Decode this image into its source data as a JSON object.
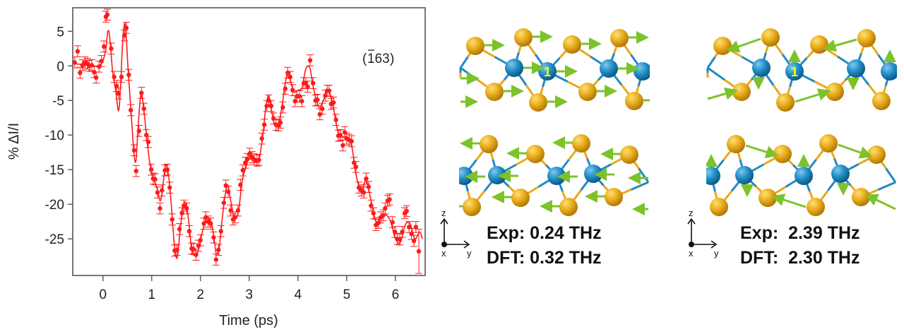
{
  "chart_data": {
    "type": "scatter",
    "title": "",
    "xlabel": "Time (ps)",
    "ylabel": "% ΔI/I",
    "xlim": [
      -0.62,
      6.61
    ],
    "ylim": [
      -30.3,
      8.4
    ],
    "xticks": [
      0,
      1,
      2,
      3,
      4,
      5,
      6
    ],
    "yticks": [
      5,
      0,
      -5,
      -10,
      -15,
      -20,
      -25
    ],
    "grid": false,
    "legend": null,
    "annotation": "(̅1̅ 63)",
    "annotation_main": "163",
    "series": [
      {
        "name": "data",
        "style": "markers+errorbars",
        "color": "#ff1a1a",
        "x": [
          -0.58,
          -0.52,
          -0.47,
          -0.42,
          -0.37,
          -0.32,
          -0.28,
          -0.23,
          -0.18,
          -0.14,
          -0.08,
          -0.03,
          0.02,
          0.06,
          0.09,
          0.17,
          0.23,
          0.28,
          0.32,
          0.38,
          0.44,
          0.48,
          0.53,
          0.57,
          0.64,
          0.68,
          0.74,
          0.79,
          0.84,
          0.89,
          0.93,
          0.99,
          1.03,
          1.07,
          1.12,
          1.17,
          1.21,
          1.27,
          1.32,
          1.37,
          1.42,
          1.47,
          1.52,
          1.57,
          1.62,
          1.66,
          1.72,
          1.77,
          1.82,
          1.86,
          1.91,
          1.96,
          2.0,
          2.07,
          2.11,
          2.16,
          2.21,
          2.27,
          2.32,
          2.37,
          2.42,
          2.48,
          2.52,
          2.57,
          2.62,
          2.67,
          2.71,
          2.77,
          2.82,
          2.87,
          2.92,
          2.96,
          3.01,
          3.06,
          3.1,
          3.16,
          3.2,
          3.26,
          3.31,
          3.36,
          3.4,
          3.45,
          3.5,
          3.55,
          3.6,
          3.64,
          3.69,
          3.74,
          3.79,
          3.84,
          3.89,
          3.94,
          3.98,
          4.03,
          4.08,
          4.12,
          4.16,
          4.2,
          4.25,
          4.31,
          4.36,
          4.4,
          4.45,
          4.5,
          4.56,
          4.6,
          4.64,
          4.68,
          4.73,
          4.78,
          4.83,
          4.87,
          4.92,
          4.96,
          5.0,
          5.05,
          5.1,
          5.15,
          5.19,
          5.25,
          5.3,
          5.35,
          5.4,
          5.45,
          5.5,
          5.55,
          5.6,
          5.65,
          5.7,
          5.75,
          5.79,
          5.84,
          5.88,
          5.94,
          5.99,
          6.04,
          6.09,
          6.14,
          6.19,
          6.23,
          6.28,
          6.33,
          6.38,
          6.42,
          6.48
        ],
        "y": [
          0.5,
          2.1,
          -1.0,
          0.1,
          0.5,
          0.3,
          0.0,
          0.1,
          -0.9,
          -1.7,
          -0.1,
          0.7,
          2.8,
          7.1,
          7.4,
          2.5,
          -1.6,
          -2.9,
          -4.0,
          -1.6,
          4.4,
          5.5,
          -1.3,
          -6.4,
          -12.2,
          -15.2,
          -9.4,
          -3.9,
          -6.2,
          -10.0,
          -11.0,
          -15.0,
          -16.3,
          -16.4,
          -18.3,
          -20.6,
          -18.0,
          -15.1,
          -15.0,
          -17.6,
          -22.2,
          -26.7,
          -26.6,
          -23.6,
          -21.3,
          -20.2,
          -20.6,
          -23.9,
          -26.4,
          -26.5,
          -27.3,
          -26.0,
          -25.2,
          -22.8,
          -21.9,
          -22.5,
          -22.8,
          -24.8,
          -28.0,
          -26.6,
          -23.9,
          -19.8,
          -17.3,
          -18.2,
          -20.9,
          -22.2,
          -21.9,
          -20.9,
          -17.2,
          -15.1,
          -14.0,
          -13.5,
          -12.7,
          -13.2,
          -13.5,
          -13.7,
          -13.6,
          -10.5,
          -8.5,
          -5.8,
          -5.0,
          -5.8,
          -7.6,
          -8.5,
          -8.6,
          -8.2,
          -6.0,
          -3.3,
          -1.0,
          -1.6,
          -3.5,
          -5.1,
          -4.4,
          -4.4,
          -5.1,
          -2.5,
          -2.5,
          -3.0,
          0.8,
          -2.5,
          -5.0,
          -4.9,
          -7.0,
          -6.2,
          -4.3,
          -3.6,
          -3.6,
          -5.5,
          -5.3,
          -7.8,
          -10.1,
          -10.0,
          -11.5,
          -9.6,
          -10.5,
          -10.7,
          -10.9,
          -14.0,
          -14.6,
          -17.6,
          -18.0,
          -18.3,
          -16.3,
          -17.5,
          -20.2,
          -21.3,
          -23.0,
          -22.7,
          -21.9,
          -21.6,
          -20.6,
          -19.5,
          -19.3,
          -22.6,
          -24.0,
          -25.0,
          -25.1,
          -24.0,
          -21.3,
          -21.0,
          -23.3,
          -24.3,
          -25.3,
          -23.3,
          -26.8
        ],
        "yerr": 0.8
      },
      {
        "name": "fit",
        "style": "line",
        "color": "#ff1a1a",
        "x": [
          -0.6,
          -0.4,
          -0.2,
          -0.05,
          0.05,
          0.1,
          0.14,
          0.2,
          0.26,
          0.32,
          0.36,
          0.4,
          0.44,
          0.47,
          0.52,
          0.58,
          0.64,
          0.68,
          0.72,
          0.78,
          0.84,
          0.9,
          0.96,
          1.02,
          1.1,
          1.17,
          1.22,
          1.28,
          1.34,
          1.4,
          1.46,
          1.52,
          1.58,
          1.64,
          1.7,
          1.76,
          1.82,
          1.9,
          1.96,
          2.04,
          2.12,
          2.2,
          2.26,
          2.32,
          2.38,
          2.44,
          2.5,
          2.56,
          2.62,
          2.7,
          2.78,
          2.86,
          2.94,
          3.02,
          3.1,
          3.2,
          3.28,
          3.34,
          3.4,
          3.46,
          3.52,
          3.6,
          3.68,
          3.74,
          3.8,
          3.86,
          3.92,
          4.0,
          4.08,
          4.16,
          4.24,
          4.3,
          4.36,
          4.44,
          4.52,
          4.6,
          4.66,
          4.74,
          4.82,
          4.9,
          5.0,
          5.1,
          5.2,
          5.3,
          5.4,
          5.5,
          5.6,
          5.7,
          5.8,
          5.9,
          6.0,
          6.1,
          6.2,
          6.3,
          6.4,
          6.5,
          6.55
        ],
        "y": [
          0.3,
          0.2,
          0.0,
          0.2,
          2.0,
          5.0,
          4.0,
          -1.0,
          -3.5,
          -6.5,
          -3.0,
          3.0,
          6.0,
          5.0,
          -1.0,
          -7.0,
          -13.0,
          -13.5,
          -9.0,
          -4.0,
          -6.5,
          -10.5,
          -14.0,
          -16.0,
          -17.5,
          -19.5,
          -18.0,
          -14.5,
          -15.5,
          -20.0,
          -25.5,
          -27.8,
          -24.0,
          -20.5,
          -19.8,
          -22.5,
          -26.5,
          -27.5,
          -26.5,
          -24.0,
          -22.0,
          -22.3,
          -24.0,
          -27.0,
          -26.5,
          -22.5,
          -19.0,
          -17.2,
          -19.5,
          -22.0,
          -21.0,
          -16.5,
          -14.5,
          -12.5,
          -13.8,
          -13.5,
          -10.0,
          -6.0,
          -4.3,
          -6.5,
          -8.5,
          -8.5,
          -5.5,
          -2.5,
          -0.8,
          -2.5,
          -3.8,
          -3.5,
          -3.2,
          -0.5,
          -0.2,
          -2.5,
          -4.5,
          -6.0,
          -5.0,
          -3.5,
          -4.0,
          -6.5,
          -9.5,
          -10.2,
          -10.3,
          -11.5,
          -16.0,
          -18.0,
          -16.5,
          -19.5,
          -22.5,
          -22.0,
          -21.5,
          -22.5,
          -25.0,
          -25.5,
          -23.0,
          -22.8,
          -25.0,
          -24.0,
          -25.0
        ]
      }
    ]
  },
  "panels": [
    {
      "id": "mode-024",
      "exp_label": "Exp:",
      "exp_value": "0.24 THz",
      "dft_label": "DFT:",
      "dft_value": "0.32 THz",
      "atom_marker": "1",
      "axes": {
        "z": "z",
        "y": "y",
        "x": "x"
      }
    },
    {
      "id": "mode-239",
      "exp_label": "Exp: ",
      "exp_value": "2.39 THz",
      "dft_label": "DFT: ",
      "dft_value": "2.30 THz",
      "atom_marker": "1",
      "axes": {
        "z": "z",
        "y": "y",
        "x": "x"
      }
    }
  ],
  "colors": {
    "data": "#ff1a1a",
    "metal_atom": "#1f8bc4",
    "chalcogen_atom": "#e8a81a",
    "displacement_arrow": "#7cc22a",
    "atom_marker": "#ffff00",
    "axis": "#555555"
  }
}
